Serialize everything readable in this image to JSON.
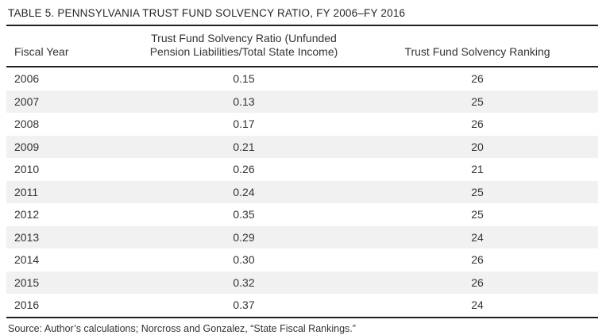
{
  "title": "TABLE 5. PENNSYLVANIA TRUST FUND SOLVENCY RATIO, FY 2006–FY 2016",
  "table": {
    "columns": [
      {
        "label": "Fiscal Year"
      },
      {
        "label": "Trust Fund Solvency Ratio (Unfunded Pension Liabilities/Total State Income)",
        "label_line1": "Trust Fund Solvency Ratio (Unfunded",
        "label_line2": "Pension Liabilities/Total State Income)"
      },
      {
        "label": "Trust Fund Solvency Ranking"
      }
    ],
    "rows": [
      {
        "fiscal_year": "2006",
        "ratio": "0.15",
        "ranking": "26"
      },
      {
        "fiscal_year": "2007",
        "ratio": "0.13",
        "ranking": "25"
      },
      {
        "fiscal_year": "2008",
        "ratio": "0.17",
        "ranking": "26"
      },
      {
        "fiscal_year": "2009",
        "ratio": "0.21",
        "ranking": "20"
      },
      {
        "fiscal_year": "2010",
        "ratio": "0.26",
        "ranking": "21"
      },
      {
        "fiscal_year": "2011",
        "ratio": "0.24",
        "ranking": "25"
      },
      {
        "fiscal_year": "2012",
        "ratio": "0.35",
        "ranking": "25"
      },
      {
        "fiscal_year": "2013",
        "ratio": "0.29",
        "ranking": "24"
      },
      {
        "fiscal_year": "2014",
        "ratio": "0.30",
        "ranking": "26"
      },
      {
        "fiscal_year": "2015",
        "ratio": "0.32",
        "ranking": "26"
      },
      {
        "fiscal_year": "2016",
        "ratio": "0.37",
        "ranking": "24"
      }
    ]
  },
  "source": "Source: Author’s calculations; Norcross and Gonzalez, “State Fiscal Rankings.”",
  "chart_data": {
    "type": "table",
    "title": "TABLE 5. PENNSYLVANIA TRUST FUND SOLVENCY RATIO, FY 2006–FY 2016",
    "columns": [
      "Fiscal Year",
      "Trust Fund Solvency Ratio (Unfunded Pension Liabilities/Total State Income)",
      "Trust Fund Solvency Ranking"
    ],
    "rows": [
      [
        2006,
        0.15,
        26
      ],
      [
        2007,
        0.13,
        25
      ],
      [
        2008,
        0.17,
        26
      ],
      [
        2009,
        0.21,
        20
      ],
      [
        2010,
        0.26,
        21
      ],
      [
        2011,
        0.24,
        25
      ],
      [
        2012,
        0.35,
        25
      ],
      [
        2013,
        0.29,
        24
      ],
      [
        2014,
        0.3,
        26
      ],
      [
        2015,
        0.32,
        26
      ],
      [
        2016,
        0.37,
        24
      ]
    ]
  },
  "colors": {
    "stripe": "#f1f1f1",
    "rule": "#231f20",
    "text": "#333333"
  }
}
